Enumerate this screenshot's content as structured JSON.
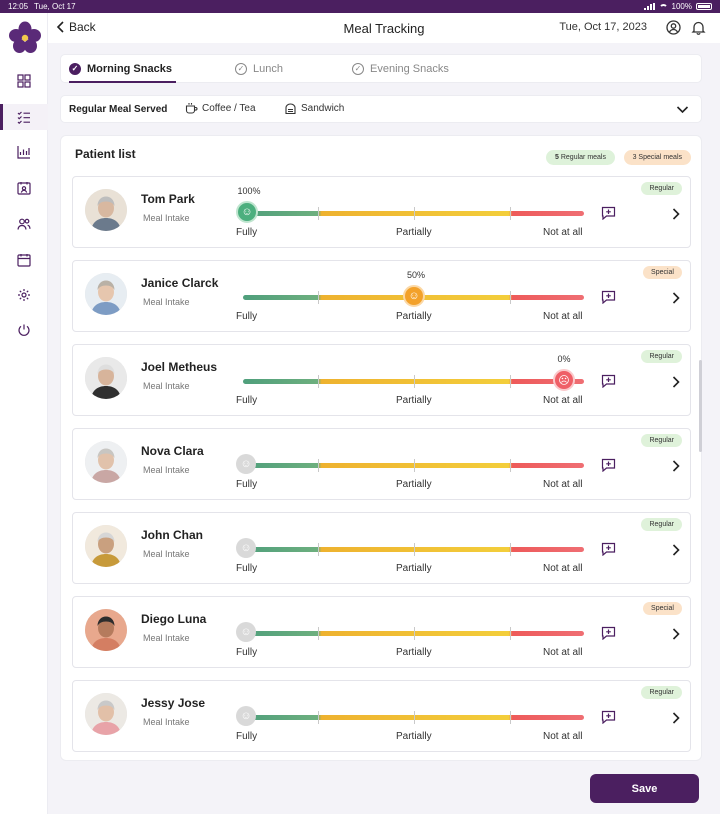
{
  "status_bar": {
    "time": "12:05",
    "date": "Tue, Oct 17",
    "battery": "100%"
  },
  "header": {
    "back_label": "Back",
    "title": "Meal Tracking",
    "date": "Tue, Oct 17, 2023"
  },
  "tabs": [
    {
      "label": "Morning Snacks",
      "active": true
    },
    {
      "label": "Lunch",
      "active": false
    },
    {
      "label": "Evening Snacks",
      "active": false
    }
  ],
  "meal": {
    "label": "Regular Meal Served",
    "items": [
      "Coffee / Tea",
      "Sandwich"
    ]
  },
  "patient_list": {
    "title": "Patient list",
    "summary": [
      {
        "count": "5",
        "label": "Regular meals"
      },
      {
        "count": "3",
        "label": "Special meals"
      }
    ]
  },
  "scale_labels": {
    "fully": "Fully",
    "partially": "Partially",
    "not_at_all": "Not at all"
  },
  "patients": [
    {
      "name": "Tom Park",
      "subtitle": "Meal Intake",
      "badge": "Regular",
      "percent": "100%",
      "state": "green"
    },
    {
      "name": "Janice Clarck",
      "subtitle": "Meal Intake",
      "badge": "Special",
      "percent": "50%",
      "state": "orange"
    },
    {
      "name": "Joel Metheus",
      "subtitle": "Meal Intake",
      "badge": "Regular",
      "percent": "0%",
      "state": "red"
    },
    {
      "name": "Nova Clara",
      "subtitle": "Meal Intake",
      "badge": "Regular",
      "percent": "",
      "state": "grey"
    },
    {
      "name": "John Chan",
      "subtitle": "Meal Intake",
      "badge": "Regular",
      "percent": "",
      "state": "grey"
    },
    {
      "name": "Diego Luna",
      "subtitle": "Meal Intake",
      "badge": "Special",
      "percent": "",
      "state": "grey"
    },
    {
      "name": "Jessy Jose",
      "subtitle": "Meal Intake",
      "badge": "Regular",
      "percent": "",
      "state": "grey"
    }
  ],
  "actions": {
    "save_label": "Save"
  },
  "colors": {
    "brand": "#4b1f60",
    "fully": "#4caf7e",
    "partially": "#f3a12a",
    "not_at_all": "#ef5f67"
  },
  "icons": [
    "grid-icon",
    "checklist-icon",
    "chart-icon",
    "calendar-user-icon",
    "users-icon",
    "calendar-icon",
    "settings-icon",
    "power-icon"
  ]
}
